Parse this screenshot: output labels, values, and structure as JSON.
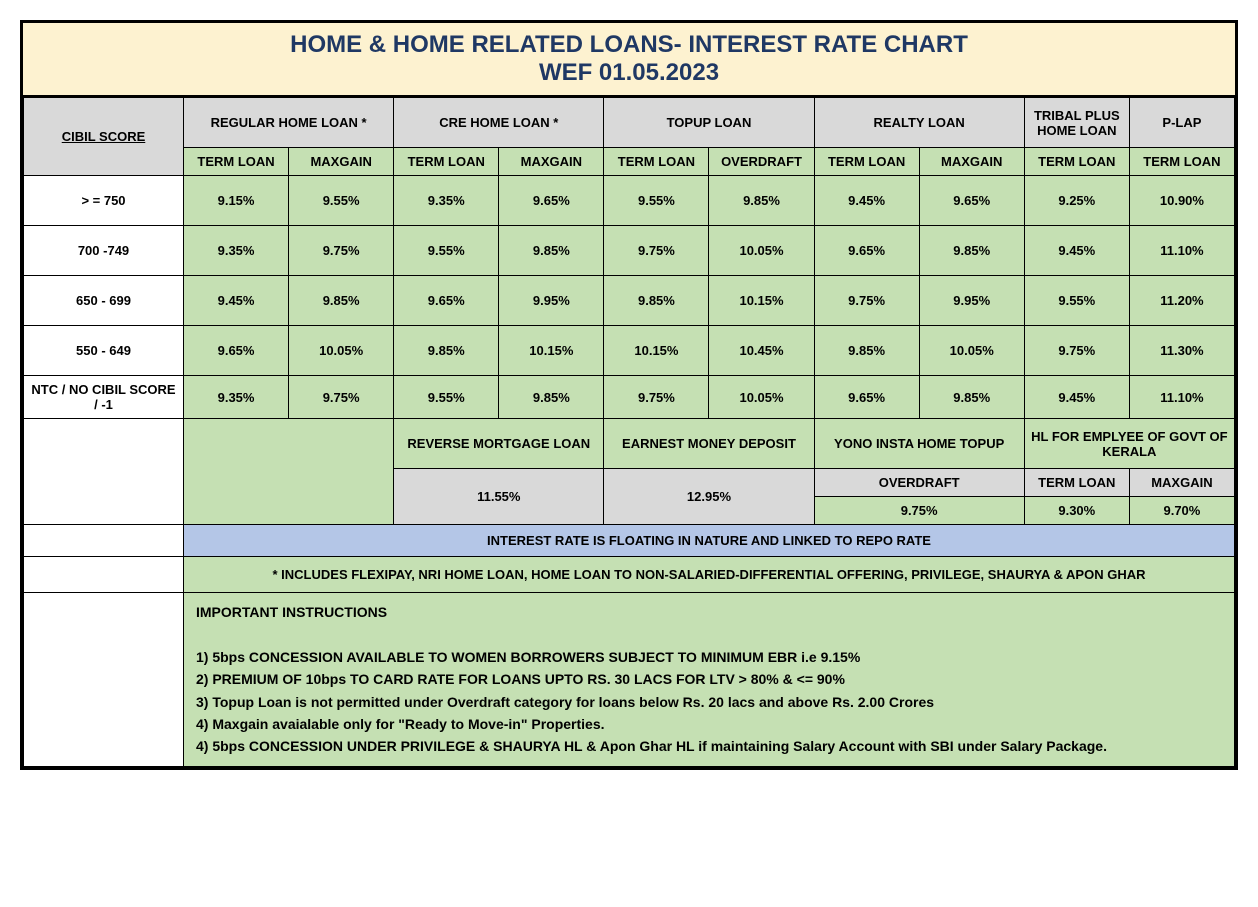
{
  "title_line1": "HOME & HOME RELATED LOANS- INTEREST RATE CHART",
  "title_line2": "WEF 01.05.2023",
  "cibil_header": "CIBIL SCORE",
  "products": {
    "regular": "REGULAR HOME LOAN *",
    "cre": "CRE HOME LOAN *",
    "topup": "TOPUP LOAN",
    "realty": "REALTY LOAN",
    "tribal": "TRIBAL PLUS HOME LOAN",
    "plap": "P-LAP"
  },
  "subheaders": {
    "term_loan": "TERM LOAN",
    "maxgain": "MAXGAIN",
    "overdraft": "OVERDRAFT"
  },
  "rows": [
    {
      "score": "> = 750",
      "vals": [
        "9.15%",
        "9.55%",
        "9.35%",
        "9.65%",
        "9.55%",
        "9.85%",
        "9.45%",
        "9.65%",
        "9.25%",
        "10.90%"
      ]
    },
    {
      "score": "700 -749",
      "vals": [
        "9.35%",
        "9.75%",
        "9.55%",
        "9.85%",
        "9.75%",
        "10.05%",
        "9.65%",
        "9.85%",
        "9.45%",
        "11.10%"
      ]
    },
    {
      "score": "650 - 699",
      "vals": [
        "9.45%",
        "9.85%",
        "9.65%",
        "9.95%",
        "9.85%",
        "10.15%",
        "9.75%",
        "9.95%",
        "9.55%",
        "11.20%"
      ]
    },
    {
      "score": "550 - 649",
      "vals": [
        "9.65%",
        "10.05%",
        "9.85%",
        "10.15%",
        "10.15%",
        "10.45%",
        "9.85%",
        "10.05%",
        "9.75%",
        "11.30%"
      ]
    },
    {
      "score": "NTC / NO CIBIL SCORE / -1",
      "vals": [
        "9.35%",
        "9.75%",
        "9.55%",
        "9.85%",
        "9.75%",
        "10.05%",
        "9.65%",
        "9.85%",
        "9.45%",
        "11.10%"
      ]
    }
  ],
  "secondary": {
    "reverse_mortgage": "REVERSE MORTGAGE LOAN",
    "earnest": "EARNEST MONEY DEPOSIT",
    "yono": "YONO INSTA HOME TOPUP",
    "hl_kerala": "HL FOR EMPLYEE OF GOVT OF KERALA",
    "reverse_mortgage_rate": "11.55%",
    "earnest_rate": "12.95%",
    "yono_sub": "OVERDRAFT",
    "yono_rate": "9.75%",
    "kerala_term": "TERM LOAN",
    "kerala_maxgain": "MAXGAIN",
    "kerala_term_rate": "9.30%",
    "kerala_maxgain_rate": "9.70%"
  },
  "note_floating": "INTEREST RATE IS FLOATING IN NATURE AND LINKED TO REPO RATE",
  "note_includes": "* INCLUDES FLEXIPAY, NRI HOME LOAN, HOME LOAN TO NON-SALARIED-DIFFERENTIAL OFFERING, PRIVILEGE, SHAURYA & APON GHAR",
  "instructions_title": "IMPORTANT INSTRUCTIONS",
  "instructions": [
    "1) 5bps CONCESSION AVAILABLE TO WOMEN BORROWERS SUBJECT TO MINIMUM EBR i.e 9.15%",
    "2) PREMIUM OF 10bps TO CARD RATE FOR LOANS UPTO RS. 30 LACS FOR LTV > 80% & <= 90%",
    "3) Topup Loan is not permitted under Overdraft category for loans below Rs. 20 lacs and above Rs. 2.00 Crores",
    "4) Maxgain avaialable only for \"Ready to Move-in\" Properties.",
    "4) 5bps CONCESSION UNDER PRIVILEGE & SHAURYA HL & Apon Ghar HL if maintaining Salary Account with SBI under Salary Package."
  ],
  "colors": {
    "title_bg": "#fdf2d0",
    "title_text": "#1f3864",
    "grey": "#d9d9d9",
    "green": "#c5e0b3",
    "blue": "#b4c6e7",
    "border": "#000000"
  }
}
